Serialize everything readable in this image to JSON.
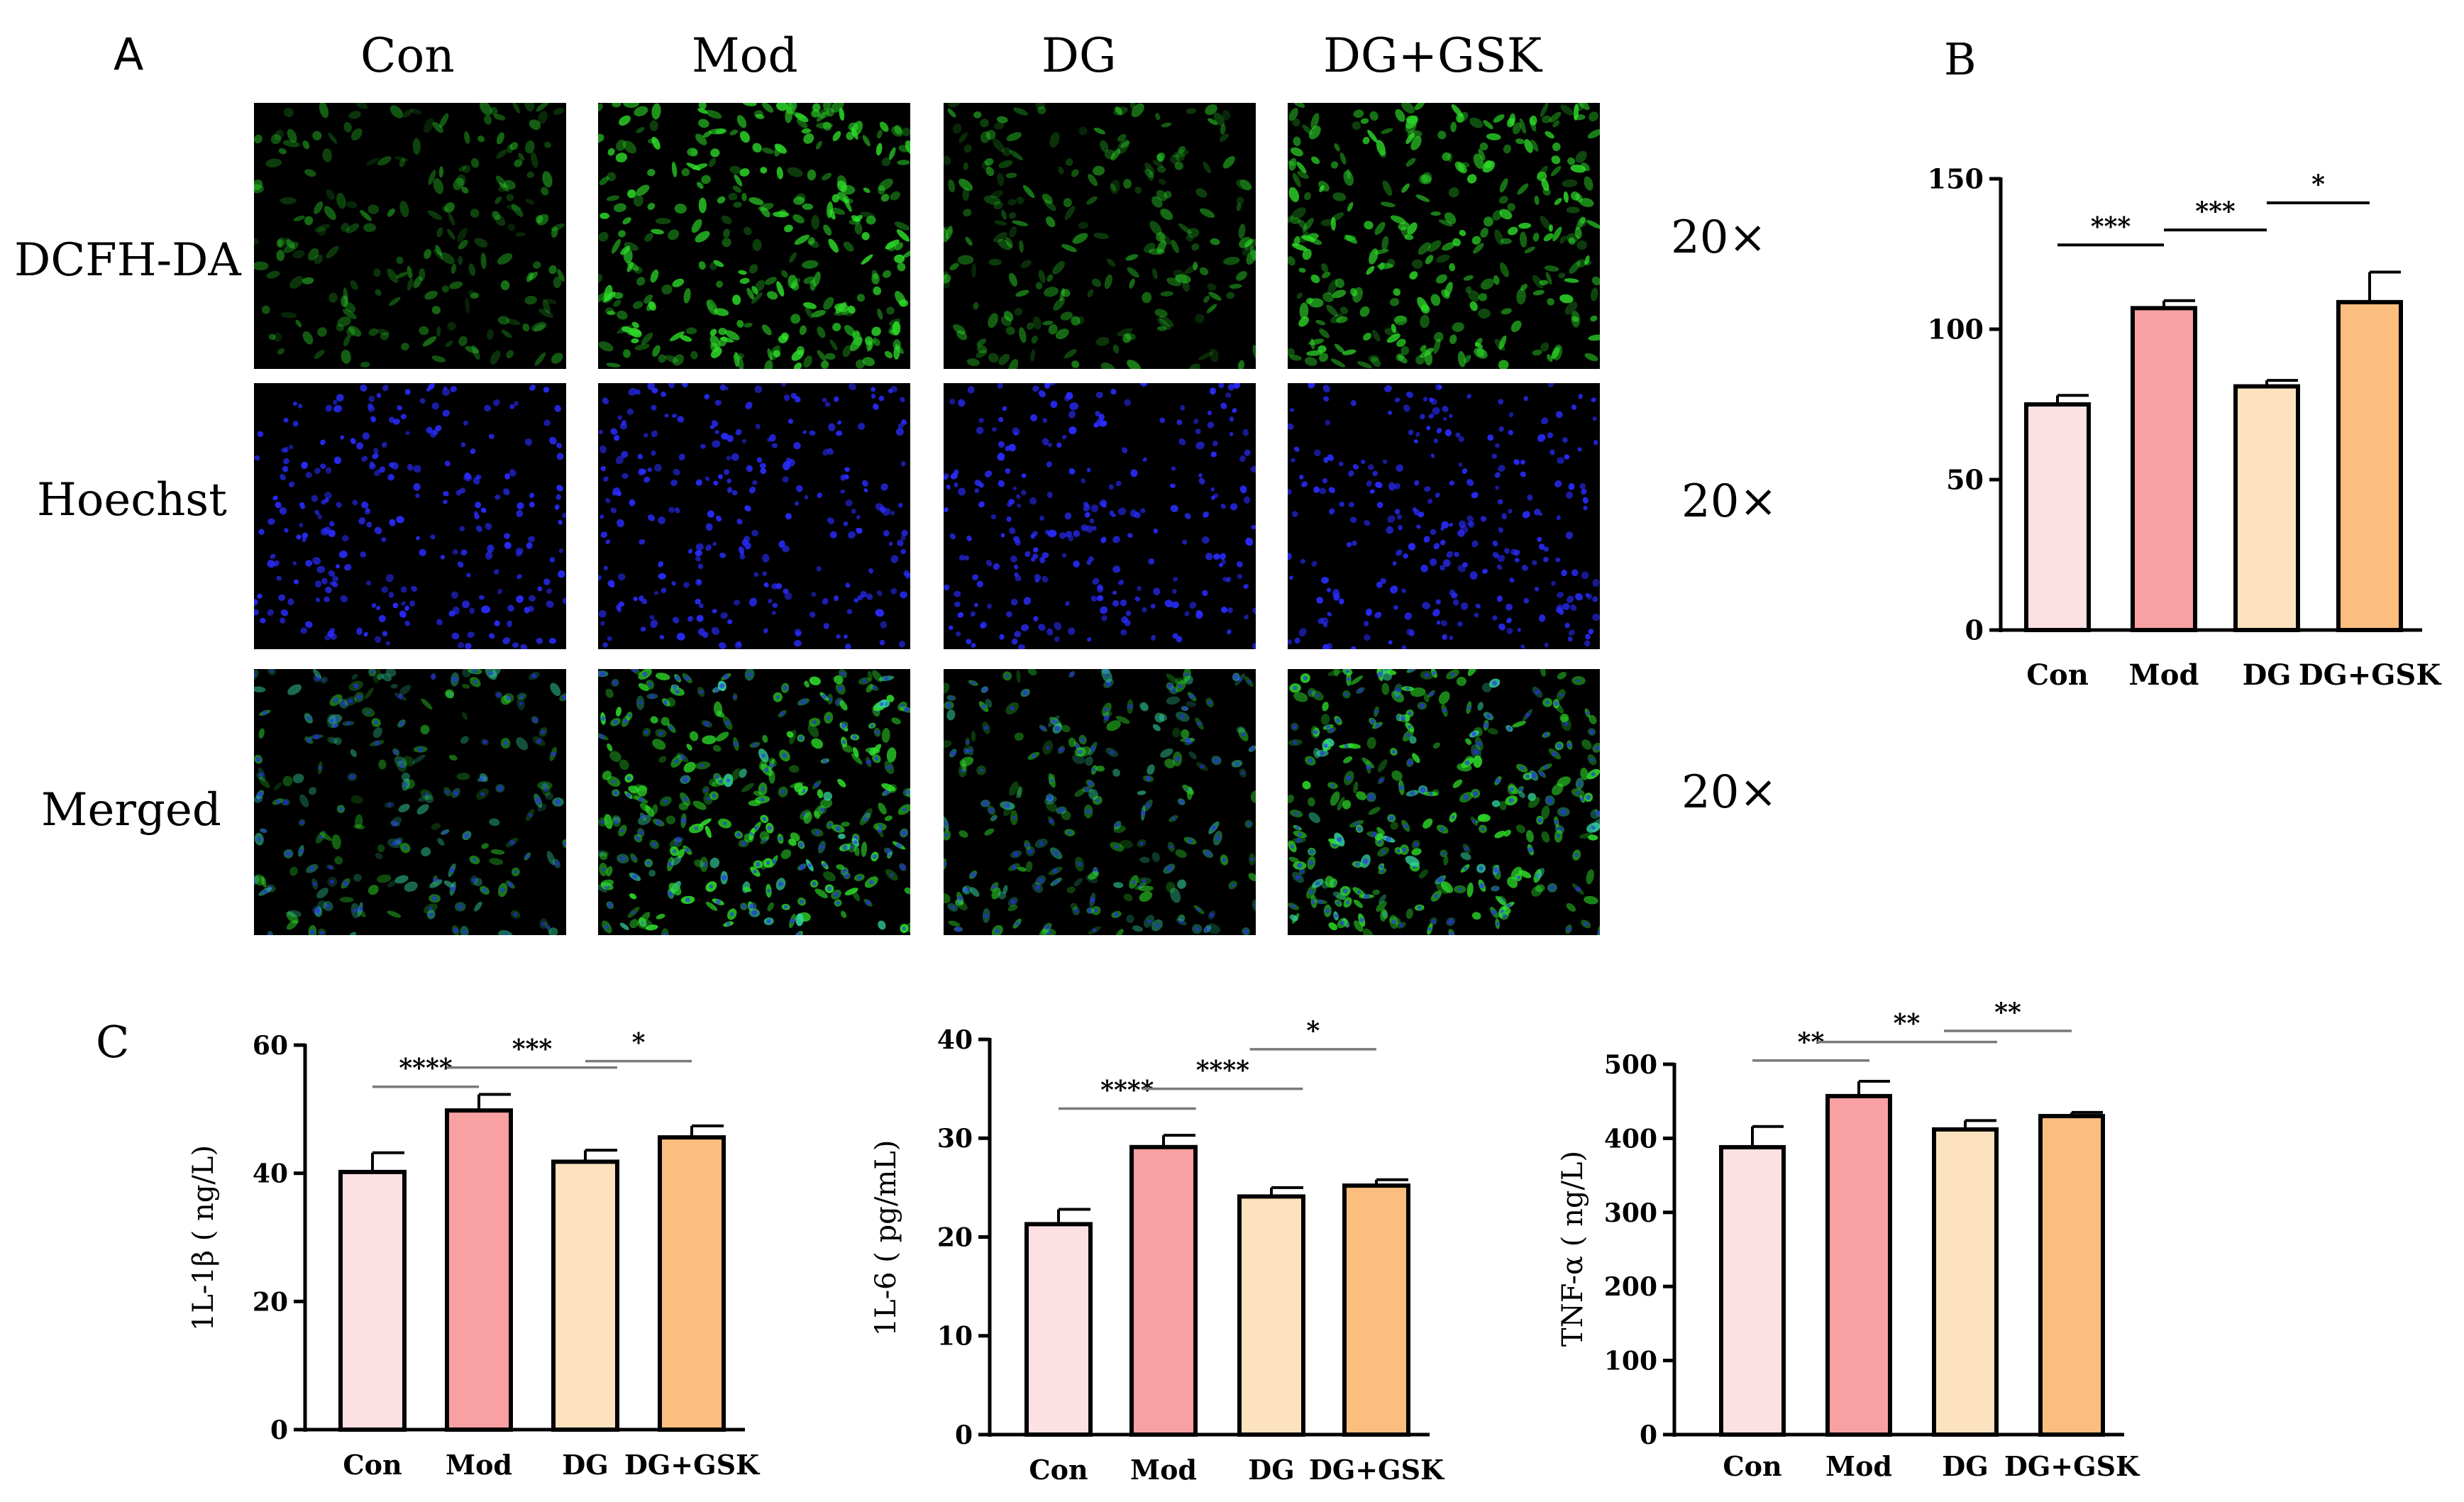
{
  "panel_a": {
    "letter": "A",
    "columns": [
      "Con",
      "Mod",
      "DG",
      "DG+GSK"
    ],
    "rows": [
      "DCFH-DA",
      "Hoechst",
      "Merged"
    ],
    "magnifications": [
      "20×",
      "20×",
      "20×"
    ]
  },
  "colors": {
    "con": "#fde0e2",
    "mod": "#f9a1a2",
    "dg": "#fde2bf",
    "dg_gsk": "#fbbe7f",
    "green_stain": "#2ee02a",
    "blue_stain": "#2a2cff",
    "merged_stain": "#33d6a0",
    "image_bg": "#000000"
  },
  "chart_data": [
    {
      "id": "B",
      "letter": "B",
      "type": "bar",
      "categories": [
        "Con",
        "Mod",
        "DG",
        "DG+GSK"
      ],
      "values": [
        75,
        107,
        81,
        109
      ],
      "errors": [
        3,
        2.5,
        2,
        10
      ],
      "ylim": [
        0,
        150
      ],
      "yticks": [
        0,
        50,
        100,
        150
      ],
      "ylabel": "",
      "sig": [
        {
          "from": 0,
          "to": 1,
          "level": 128,
          "label": "***"
        },
        {
          "from": 1,
          "to": 2,
          "level": 133,
          "label": "***"
        },
        {
          "from": 2,
          "to": 3,
          "level": 142,
          "label": "*"
        }
      ]
    },
    {
      "id": "C1",
      "letter": "C",
      "type": "bar",
      "categories": [
        "Con",
        "Mod",
        "DG",
        "DG+GSK"
      ],
      "values": [
        40.2,
        49.8,
        41.8,
        45.6
      ],
      "errors": [
        3,
        2.5,
        1.8,
        1.8
      ],
      "ylim": [
        0,
        60
      ],
      "yticks": [
        0,
        20,
        40,
        60
      ],
      "ylabel": "1L-1β ( ng/L)",
      "sig": [
        {
          "from": 0,
          "to": 1,
          "level": 53.5,
          "label": "****"
        },
        {
          "from": 0.7,
          "to": 2.3,
          "level": 56.5,
          "label": "***"
        },
        {
          "from": 2,
          "to": 3.6,
          "level": 57.5,
          "label": "*"
        }
      ]
    },
    {
      "id": "C2",
      "letter": "",
      "type": "bar",
      "categories": [
        "Con",
        "Mod",
        "DG",
        "DG+GSK"
      ],
      "values": [
        21.3,
        29.1,
        24.1,
        25.2
      ],
      "errors": [
        1.5,
        1.2,
        0.9,
        0.6
      ],
      "ylim": [
        0,
        40
      ],
      "yticks": [
        0,
        10,
        20,
        30,
        40
      ],
      "ylabel": "1L-6 ( pg/mL)",
      "sig": [
        {
          "from": 0,
          "to": 1.3,
          "level": 33,
          "label": "****"
        },
        {
          "from": 0.8,
          "to": 2.3,
          "level": 35,
          "label": "****"
        },
        {
          "from": 1.8,
          "to": 3.4,
          "level": 39,
          "label": "*"
        }
      ]
    },
    {
      "id": "C3",
      "letter": "",
      "type": "bar",
      "categories": [
        "Con",
        "Mod",
        "DG",
        "DG+GSK"
      ],
      "values": [
        388,
        457,
        412,
        430
      ],
      "errors": [
        28,
        20,
        12,
        5
      ],
      "ylim": [
        0,
        500
      ],
      "yticks": [
        0,
        100,
        200,
        300,
        400,
        500
      ],
      "ylabel": "TNF-α ( ng/L)",
      "sig": [
        {
          "from": 0,
          "to": 1.1,
          "level": 505,
          "label": "**"
        },
        {
          "from": 0.6,
          "to": 2.3,
          "level": 530,
          "label": "**"
        },
        {
          "from": 1.8,
          "to": 3.3,
          "level": 545,
          "label": "**"
        }
      ]
    }
  ]
}
